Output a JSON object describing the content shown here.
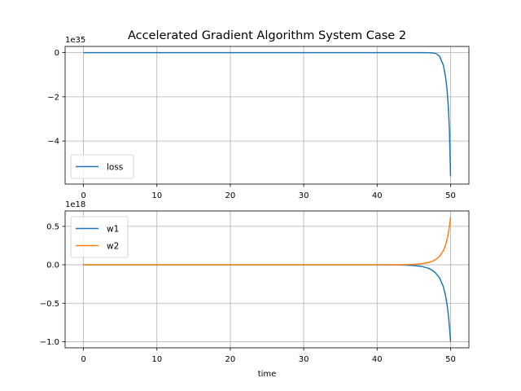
{
  "title": "Accelerated Gradient Algorithm System Case 2",
  "colors": {
    "blue": "#1f77b4",
    "orange": "#ff7f0e",
    "grid": "#b0b0b0"
  },
  "chart_data": [
    {
      "type": "line",
      "title": "Accelerated Gradient Algorithm System Case 2",
      "xlabel": "",
      "ylabel": "",
      "offset_label": "1e35",
      "grid": true,
      "legend": "lower-left",
      "xlim": [
        -2.5,
        52.5
      ],
      "ylim": [
        -5.95,
        0.28
      ],
      "xticks": [
        0,
        10,
        20,
        30,
        40,
        50
      ],
      "xticklabels": [
        "0",
        "10",
        "20",
        "30",
        "40",
        "50"
      ],
      "yticks": [
        -4,
        -2,
        0
      ],
      "yticklabels": [
        "−4",
        "−2",
        "0"
      ],
      "series": [
        {
          "name": "loss",
          "color": "#1f77b4",
          "x": [
            0,
            10,
            20,
            30,
            40,
            44,
            46,
            47,
            47.5,
            48,
            48.5,
            49,
            49.3,
            49.5,
            49.7,
            49.85,
            50
          ],
          "y": [
            0,
            0,
            0,
            0,
            0,
            0,
            -0.001,
            -0.005,
            -0.012,
            -0.04,
            -0.16,
            -0.55,
            -1.05,
            -1.6,
            -2.45,
            -3.5,
            -5.6
          ]
        }
      ]
    },
    {
      "type": "line",
      "title": "",
      "xlabel": "time",
      "ylabel": "",
      "offset_label": "1e18",
      "grid": true,
      "legend": "upper-left",
      "xlim": [
        -2.5,
        52.5
      ],
      "ylim": [
        -1.08,
        0.7
      ],
      "xticks": [
        0,
        10,
        20,
        30,
        40,
        50
      ],
      "xticklabels": [
        "0",
        "10",
        "20",
        "30",
        "40",
        "50"
      ],
      "yticks": [
        -1.0,
        -0.5,
        0.0,
        0.5
      ],
      "yticklabels": [
        "−1.0",
        "−0.5",
        "0.0",
        "0.5"
      ],
      "series": [
        {
          "name": "w1",
          "color": "#1f77b4",
          "x": [
            0,
            10,
            20,
            30,
            40,
            43,
            44,
            45,
            46,
            47,
            47.5,
            48,
            48.5,
            49,
            49.3,
            49.5,
            49.7,
            49.85,
            50
          ],
          "y": [
            0,
            0,
            0,
            0,
            0,
            -0.002,
            -0.004,
            -0.01,
            -0.02,
            -0.045,
            -0.07,
            -0.11,
            -0.17,
            -0.28,
            -0.39,
            -0.5,
            -0.65,
            -0.8,
            -1.0
          ]
        },
        {
          "name": "w2",
          "color": "#ff7f0e",
          "x": [
            0,
            10,
            20,
            30,
            40,
            43,
            44,
            45,
            46,
            47,
            47.5,
            48,
            48.5,
            49,
            49.3,
            49.5,
            49.7,
            49.85,
            50
          ],
          "y": [
            0,
            0,
            0,
            0,
            0,
            0.0012,
            0.0025,
            0.006,
            0.013,
            0.03,
            0.045,
            0.07,
            0.11,
            0.18,
            0.25,
            0.32,
            0.41,
            0.5,
            0.62
          ]
        }
      ]
    }
  ]
}
